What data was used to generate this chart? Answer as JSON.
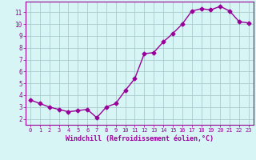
{
  "x": [
    0,
    1,
    2,
    3,
    4,
    5,
    6,
    7,
    8,
    9,
    10,
    11,
    12,
    13,
    14,
    15,
    16,
    17,
    18,
    19,
    20,
    21,
    22,
    23
  ],
  "y": [
    3.6,
    3.3,
    3.0,
    2.8,
    2.6,
    2.7,
    2.8,
    2.1,
    3.0,
    3.3,
    4.4,
    5.4,
    7.5,
    7.6,
    8.5,
    9.2,
    10.0,
    11.1,
    11.3,
    11.2,
    11.5,
    11.1,
    10.2,
    10.1
  ],
  "line_color": "#990099",
  "marker": "D",
  "marker_size": 2.5,
  "bg_color": "#d8f5f5",
  "grid_color": "#aacccc",
  "xlabel": "Windchill (Refroidissement éolien,°C)",
  "xlabel_color": "#990099",
  "tick_color": "#990099",
  "xlim": [
    -0.5,
    23.5
  ],
  "ylim": [
    1.5,
    11.9
  ],
  "yticks": [
    2,
    3,
    4,
    5,
    6,
    7,
    8,
    9,
    10,
    11
  ],
  "xticks": [
    0,
    1,
    2,
    3,
    4,
    5,
    6,
    7,
    8,
    9,
    10,
    11,
    12,
    13,
    14,
    15,
    16,
    17,
    18,
    19,
    20,
    21,
    22,
    23
  ],
  "line_width": 1.0,
  "border_color": "#990099",
  "tick_fontsize": 5.0,
  "xlabel_fontsize": 6.0
}
